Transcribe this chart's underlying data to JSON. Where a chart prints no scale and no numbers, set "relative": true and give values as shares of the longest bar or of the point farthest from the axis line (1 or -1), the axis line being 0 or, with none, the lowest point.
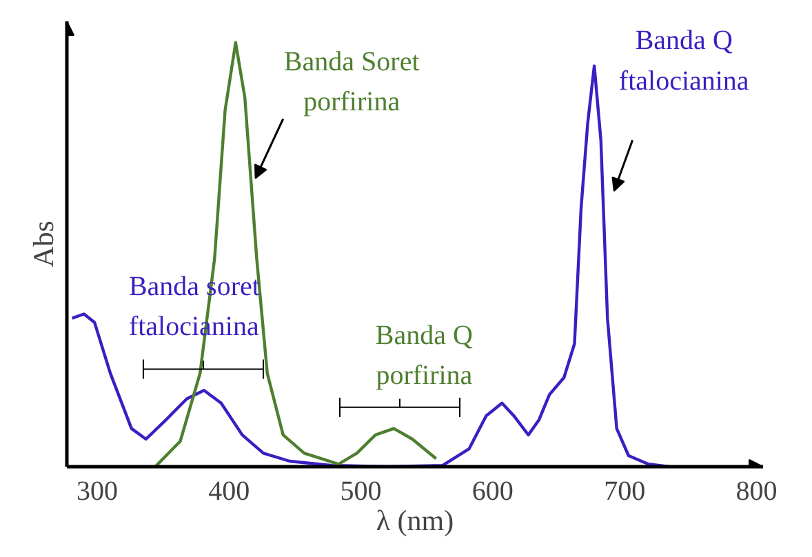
{
  "chart_data": {
    "type": "line",
    "relative": true,
    "xlabel": "λ (nm)",
    "ylabel": "Abs",
    "xlim": [
      277,
      805
    ],
    "xticks": [
      300,
      400,
      500,
      600,
      700,
      800
    ],
    "tick_labels": "x",
    "grid": false,
    "series": [
      {
        "color": "#3a1fc1",
        "x": [
          281,
          290,
          298,
          310,
          326,
          337,
          352,
          368,
          381,
          394,
          410,
          426,
          446,
          478,
          520,
          562,
          582,
          595,
          607,
          616,
          627,
          635,
          643,
          654,
          662,
          667,
          672,
          677,
          682,
          687,
          694,
          703,
          718,
          734
        ],
        "values": [
          0.35,
          0.36,
          0.34,
          0.22,
          0.09,
          0.065,
          0.11,
          0.16,
          0.18,
          0.15,
          0.075,
          0.032,
          0.013,
          0.003,
          0,
          0.003,
          0.042,
          0.12,
          0.15,
          0.12,
          0.075,
          0.11,
          0.17,
          0.21,
          0.29,
          0.61,
          0.81,
          0.945,
          0.77,
          0.35,
          0.09,
          0.026,
          0.006,
          0
        ]
      },
      {
        "color": "#4e7f2f",
        "x": [
          344,
          363,
          378,
          389,
          397,
          405,
          412,
          421,
          429,
          441,
          457,
          473,
          483,
          497,
          511,
          525,
          539,
          557
        ],
        "values": [
          0,
          0.06,
          0.22,
          0.49,
          0.84,
          1.0,
          0.87,
          0.49,
          0.22,
          0.075,
          0.032,
          0.016,
          0.006,
          0.032,
          0.075,
          0.09,
          0.065,
          0.019
        ]
      }
    ],
    "annotations": [
      {
        "text": "Banda Soret\nporfirina",
        "x": 405,
        "y": 1.0
      },
      {
        "text": "Banda Q\nftalocianina",
        "x": 677,
        "y": 0.945
      },
      {
        "text": "Banda soret\nftalocianina",
        "x": 381,
        "y": 0.18
      },
      {
        "text": "Banda Q\nporfirina",
        "x": 525,
        "y": 0.09
      }
    ]
  }
}
